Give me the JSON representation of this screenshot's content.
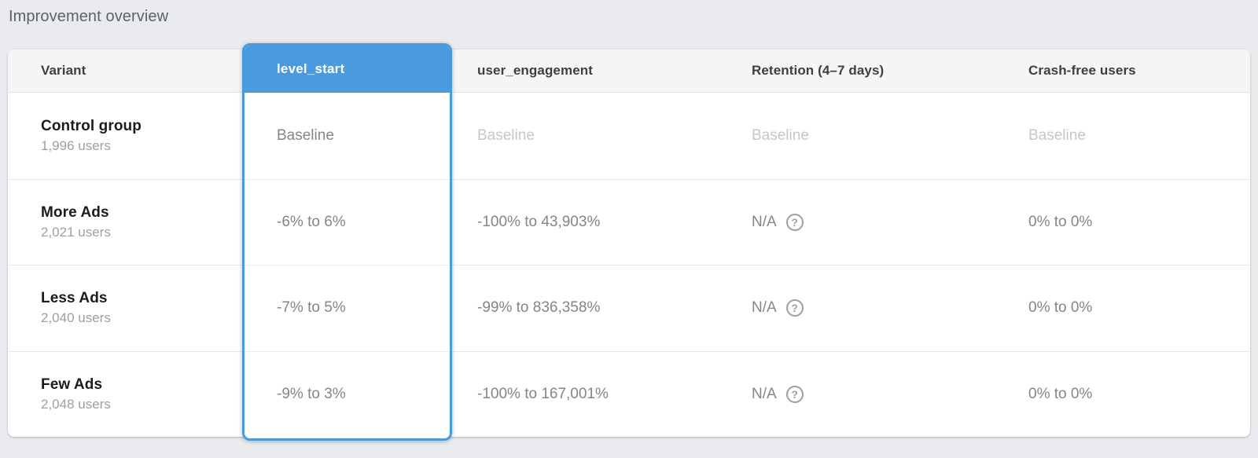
{
  "page": {
    "title": "Improvement overview"
  },
  "colors": {
    "accent_blue": "#4a9ade",
    "header_bg": "#f5f5f5",
    "page_bg": "#e9ebee",
    "baseline_text": "#c3c7ca",
    "value_text": "#80868b"
  },
  "table": {
    "headers": {
      "variant": "Variant",
      "level_start": "level_start",
      "user_engagement": "user_engagement",
      "retention": "Retention (4–7 days)",
      "crash_free": "Crash-free users"
    },
    "selected_metric": "level_start",
    "help_icon_glyph": "?",
    "rows": [
      {
        "variant": "Control group",
        "users": "1,996 users",
        "level_start": "Baseline",
        "user_engagement": "Baseline",
        "retention": "Baseline",
        "crash_free": "Baseline"
      },
      {
        "variant": "More Ads",
        "users": "2,021 users",
        "level_start": "-6% to 6%",
        "user_engagement": "-100% to 43,903%",
        "retention": "N/A",
        "crash_free": "0% to 0%"
      },
      {
        "variant": "Less Ads",
        "users": "2,040 users",
        "level_start": "-7% to 5%",
        "user_engagement": "-99% to 836,358%",
        "retention": "N/A",
        "crash_free": "0% to 0%"
      },
      {
        "variant": "Few Ads",
        "users": "2,048 users",
        "level_start": "-9% to 3%",
        "user_engagement": "-100% to 167,001%",
        "retention": "N/A",
        "crash_free": "0% to 0%"
      }
    ]
  }
}
